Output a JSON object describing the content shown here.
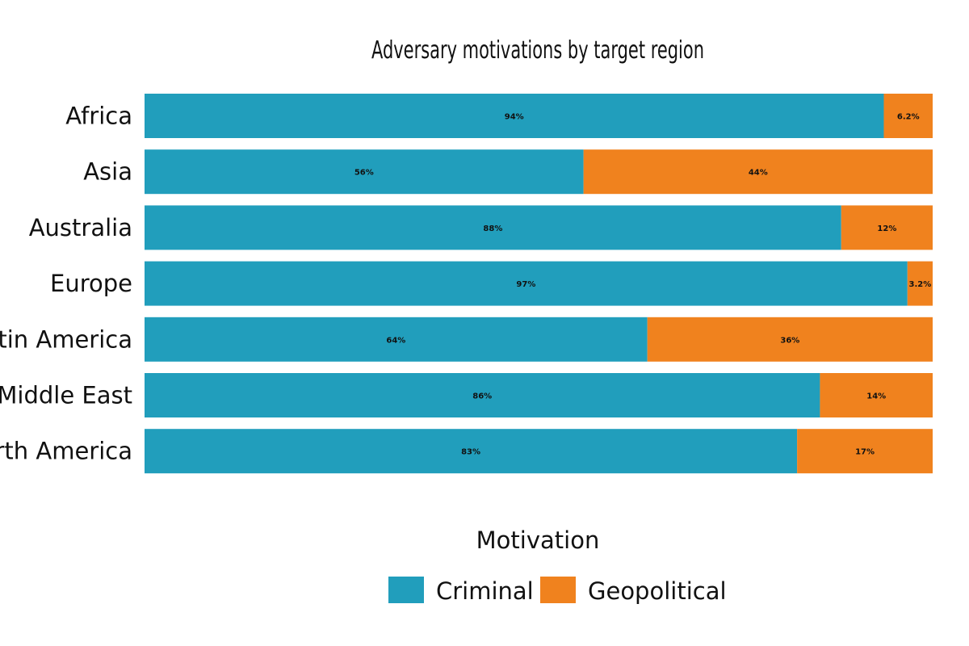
{
  "chart_data": {
    "type": "bar",
    "orientation": "horizontal",
    "stacked": true,
    "normalized": true,
    "title": "Adversary motivations by target region",
    "categories": [
      "Africa",
      "Asia",
      "Australia",
      "Europe",
      "Latin America",
      "Middle East",
      "North America"
    ],
    "series": [
      {
        "name": "Criminal",
        "color": "#219ebc",
        "values": [
          0.938,
          0.557,
          0.884,
          0.968,
          0.638,
          0.857,
          0.828
        ],
        "labels": [
          "94%",
          "56%",
          "88%",
          "97%",
          "64%",
          "86%",
          "83%"
        ]
      },
      {
        "name": "Geopolitical",
        "color": "#f0821e",
        "values": [
          0.062,
          0.443,
          0.116,
          0.032,
          0.362,
          0.143,
          0.172
        ],
        "labels": [
          "6.2%",
          "44%",
          "12%",
          "3.2%",
          "36%",
          "14%",
          "17%"
        ]
      }
    ],
    "xlim": [
      0,
      1
    ],
    "grid": false,
    "legend": {
      "title": "Motivation",
      "position": "bottom",
      "entries": [
        "Criminal",
        "Geopolitical"
      ]
    }
  }
}
